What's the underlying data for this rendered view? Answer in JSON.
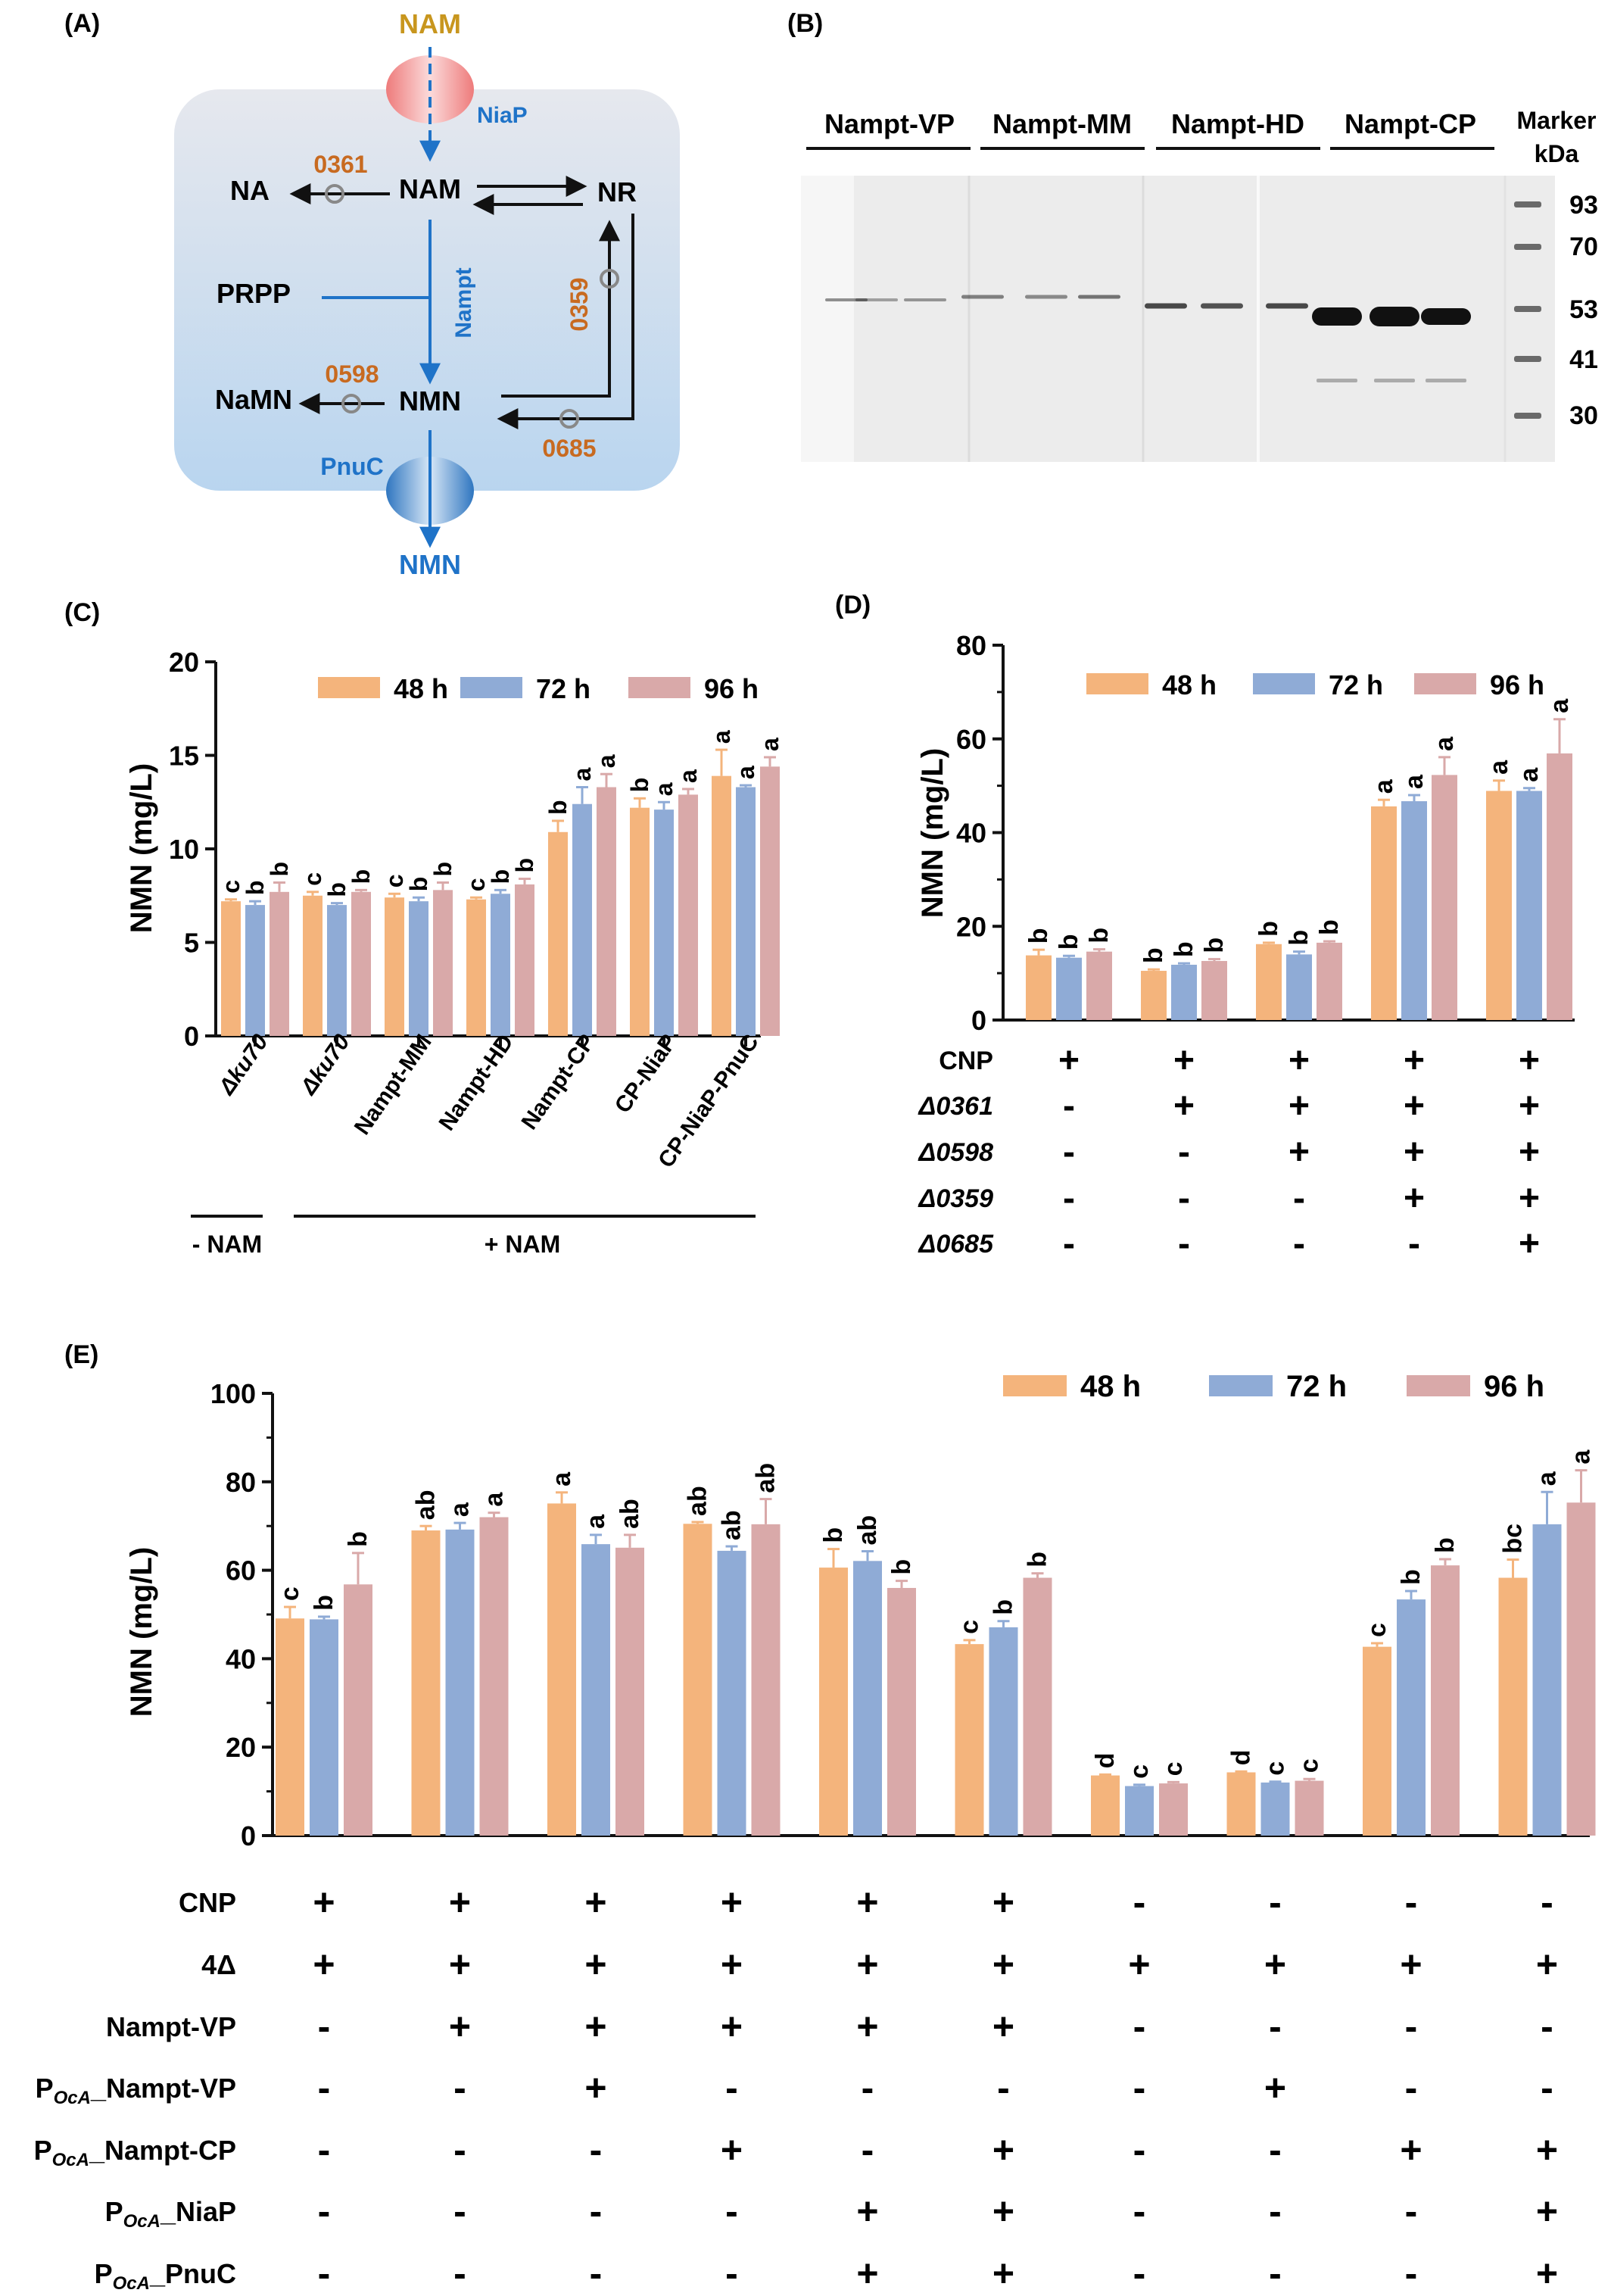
{
  "colors": {
    "h48": "#F4B47C",
    "h72": "#8FABD6",
    "h96": "#D9A9A9",
    "blue": "#1F73C8",
    "orange": "#C86A20",
    "gold": "#C8961E",
    "cell_top": "#E6E8EE",
    "cell_bottom": "#B9D5EF"
  },
  "panels": {
    "A": {
      "label": "(A)",
      "nodes": {
        "nam_top": "NAM",
        "niap": "NiaP",
        "na": "NA",
        "nam": "NAM",
        "nr": "NR",
        "prpp": "PRPP",
        "nampt": "Nampt",
        "namn": "NaMN",
        "nmn": "NMN",
        "pnuc": "PnuC",
        "nmn_out": "NMN"
      },
      "enzymes": {
        "e0361": "0361",
        "e0359": "0359",
        "e0598": "0598",
        "e0685": "0685"
      }
    },
    "B": {
      "label": "(B)",
      "lanes": [
        "Nampt-VP",
        "Nampt-MM",
        "Nampt-HD",
        "Nampt-CP"
      ],
      "marker_title": [
        "Marker",
        "kDa"
      ],
      "markers": [
        "93",
        "70",
        "53",
        "41",
        "30"
      ]
    },
    "C": {
      "label": "(C)",
      "legend": [
        "48 h",
        "72 h",
        "96 h"
      ],
      "ylabel": "NMN (mg/L)",
      "yticks": [
        "0",
        "5",
        "10",
        "15",
        "20"
      ],
      "xlabels": [
        "Δku70",
        "Δku70",
        "Nampt-MM",
        "Nampt-HD",
        "Nampt-CP",
        "CP-NiaP",
        "CP-NiaP-PnuC"
      ],
      "groups": [
        {
          "label": "- NAM"
        },
        {
          "label": "+ NAM"
        }
      ]
    },
    "D": {
      "label": "(D)",
      "legend": [
        "48 h",
        "72 h",
        "96 h"
      ],
      "ylabel": "NMN (mg/L)",
      "yticks": [
        "0",
        "20",
        "40",
        "60",
        "80"
      ],
      "rows": [
        {
          "label": "CNP",
          "italic": false,
          "vals": [
            "+",
            "+",
            "+",
            "+",
            "+"
          ]
        },
        {
          "label": "Δ0361",
          "italic": true,
          "vals": [
            "-",
            "+",
            "+",
            "+",
            "+"
          ]
        },
        {
          "label": "Δ0598",
          "italic": true,
          "vals": [
            "-",
            "-",
            "+",
            "+",
            "+"
          ]
        },
        {
          "label": "Δ0359",
          "italic": true,
          "vals": [
            "-",
            "-",
            "-",
            "+",
            "+"
          ]
        },
        {
          "label": "Δ0685",
          "italic": true,
          "vals": [
            "-",
            "-",
            "-",
            "-",
            "+"
          ]
        }
      ]
    },
    "E": {
      "label": "(E)",
      "legend": [
        "48 h",
        "72 h",
        "96 h"
      ],
      "ylabel": "NMN (mg/L)",
      "yticks": [
        "0",
        "20",
        "40",
        "60",
        "80",
        "100"
      ],
      "rows": [
        {
          "label": "CNP",
          "vals": [
            "+",
            "+",
            "+",
            "+",
            "+",
            "+",
            "-",
            "-",
            "-",
            "-"
          ]
        },
        {
          "label": "4Δ",
          "vals": [
            "+",
            "+",
            "+",
            "+",
            "+",
            "+",
            "+",
            "+",
            "+",
            "+"
          ]
        },
        {
          "label": "Nampt-VP",
          "vals": [
            "-",
            "+",
            "+",
            "+",
            "+",
            "+",
            "-",
            "-",
            "-",
            "-"
          ]
        },
        {
          "pre": "P",
          "sub": "OcA",
          "label": "_Nampt-VP",
          "vals": [
            "-",
            "-",
            "+",
            "-",
            "-",
            "-",
            "-",
            "+",
            "-",
            "-"
          ]
        },
        {
          "pre": "P",
          "sub": "OcA",
          "label": "_Nampt-CP",
          "vals": [
            "-",
            "-",
            "-",
            "+",
            "-",
            "+",
            "-",
            "-",
            "+",
            "+"
          ]
        },
        {
          "pre": "P",
          "sub": "OcA",
          "label": "_NiaP",
          "vals": [
            "-",
            "-",
            "-",
            "-",
            "+",
            "+",
            "-",
            "-",
            "-",
            "+"
          ]
        },
        {
          "pre": "P",
          "sub": "OcA",
          "label": "_PnuC",
          "vals": [
            "-",
            "-",
            "-",
            "-",
            "+",
            "+",
            "-",
            "-",
            "-",
            "+"
          ]
        }
      ]
    }
  },
  "chart_data": [
    {
      "type": "bar",
      "panel": "C",
      "title": "",
      "xlabel": "",
      "ylabel": "NMN (mg/L)",
      "ylim": [
        0,
        20
      ],
      "categories": [
        "Δku70",
        "Δku70",
        "Nampt-MM",
        "Nampt-HD",
        "Nampt-CP",
        "CP-NiaP",
        "CP-NiaP-PnuC"
      ],
      "series": [
        {
          "name": "48 h",
          "values": [
            7.2,
            7.5,
            7.4,
            7.3,
            10.9,
            12.2,
            13.9
          ],
          "errors": [
            0.1,
            0.2,
            0.2,
            0.1,
            0.6,
            0.5,
            1.4
          ],
          "letters": [
            "c",
            "c",
            "c",
            "c",
            "b",
            "b",
            "a"
          ]
        },
        {
          "name": "72 h",
          "values": [
            7.0,
            7.0,
            7.2,
            7.6,
            12.4,
            12.1,
            13.3
          ],
          "errors": [
            0.2,
            0.1,
            0.2,
            0.2,
            0.9,
            0.4,
            0.1
          ],
          "letters": [
            "b",
            "b",
            "b",
            "b",
            "a",
            "a",
            "a"
          ]
        },
        {
          "name": "96 h",
          "values": [
            7.7,
            7.7,
            7.8,
            8.1,
            13.3,
            12.9,
            14.4
          ],
          "errors": [
            0.5,
            0.1,
            0.4,
            0.3,
            0.7,
            0.3,
            0.5
          ],
          "letters": [
            "b",
            "b",
            "b",
            "b",
            "a",
            "a",
            "a"
          ]
        }
      ]
    },
    {
      "type": "bar",
      "panel": "D",
      "title": "",
      "xlabel": "",
      "ylabel": "NMN (mg/L)",
      "ylim": [
        0,
        80
      ],
      "categories": [
        "1",
        "2",
        "3",
        "4",
        "5"
      ],
      "series": [
        {
          "name": "48 h",
          "values": [
            13.8,
            10.5,
            16.2,
            45.6,
            48.9
          ],
          "errors": [
            1.2,
            0.3,
            0.3,
            1.4,
            2.2
          ],
          "letters": [
            "b",
            "b",
            "b",
            "a",
            "a"
          ]
        },
        {
          "name": "72 h",
          "values": [
            13.3,
            11.8,
            14.0,
            46.7,
            48.9
          ],
          "errors": [
            0.4,
            0.3,
            0.6,
            1.3,
            0.6
          ],
          "letters": [
            "b",
            "b",
            "b",
            "a",
            "a"
          ]
        },
        {
          "name": "96 h",
          "values": [
            14.6,
            12.6,
            16.5,
            52.3,
            56.9
          ],
          "errors": [
            0.5,
            0.4,
            0.3,
            3.8,
            7.3
          ],
          "letters": [
            "b",
            "b",
            "b",
            "a",
            "a"
          ]
        }
      ]
    },
    {
      "type": "bar",
      "panel": "E",
      "title": "",
      "xlabel": "",
      "ylabel": "NMN (mg/L)",
      "ylim": [
        0,
        100
      ],
      "categories": [
        "1",
        "2",
        "3",
        "4",
        "5",
        "6",
        "7",
        "8",
        "9",
        "10"
      ],
      "series": [
        {
          "name": "48 h",
          "values": [
            49.1,
            69.0,
            75.1,
            70.5,
            60.6,
            43.3,
            13.6,
            14.3,
            42.7,
            58.3
          ],
          "errors": [
            2.6,
            1.0,
            2.5,
            0.4,
            4.2,
            0.9,
            0.2,
            0.2,
            0.8,
            4.1
          ],
          "letters": [
            "c",
            "ab",
            "a",
            "ab",
            "b",
            "c",
            "d",
            "d",
            "c",
            "bc"
          ]
        },
        {
          "name": "72 h",
          "values": [
            48.9,
            69.2,
            65.9,
            64.4,
            62.1,
            47.1,
            11.2,
            12.0,
            53.4,
            70.4
          ],
          "errors": [
            0.6,
            1.5,
            2.1,
            1.0,
            2.2,
            1.4,
            0.3,
            0.2,
            1.9,
            7.3
          ],
          "letters": [
            "b",
            "a",
            "a",
            "ab",
            "ab",
            "b",
            "c",
            "c",
            "b",
            "a"
          ]
        },
        {
          "name": "96 h",
          "values": [
            56.8,
            72.0,
            65.1,
            70.4,
            56.0,
            58.3,
            11.8,
            12.4,
            61.1,
            75.3
          ],
          "errors": [
            7.1,
            1.0,
            2.9,
            5.7,
            1.6,
            1.0,
            0.3,
            0.4,
            1.4,
            7.3
          ],
          "letters": [
            "b",
            "a",
            "ab",
            "ab",
            "b",
            "b",
            "c",
            "c",
            "b",
            "a"
          ]
        }
      ]
    }
  ]
}
